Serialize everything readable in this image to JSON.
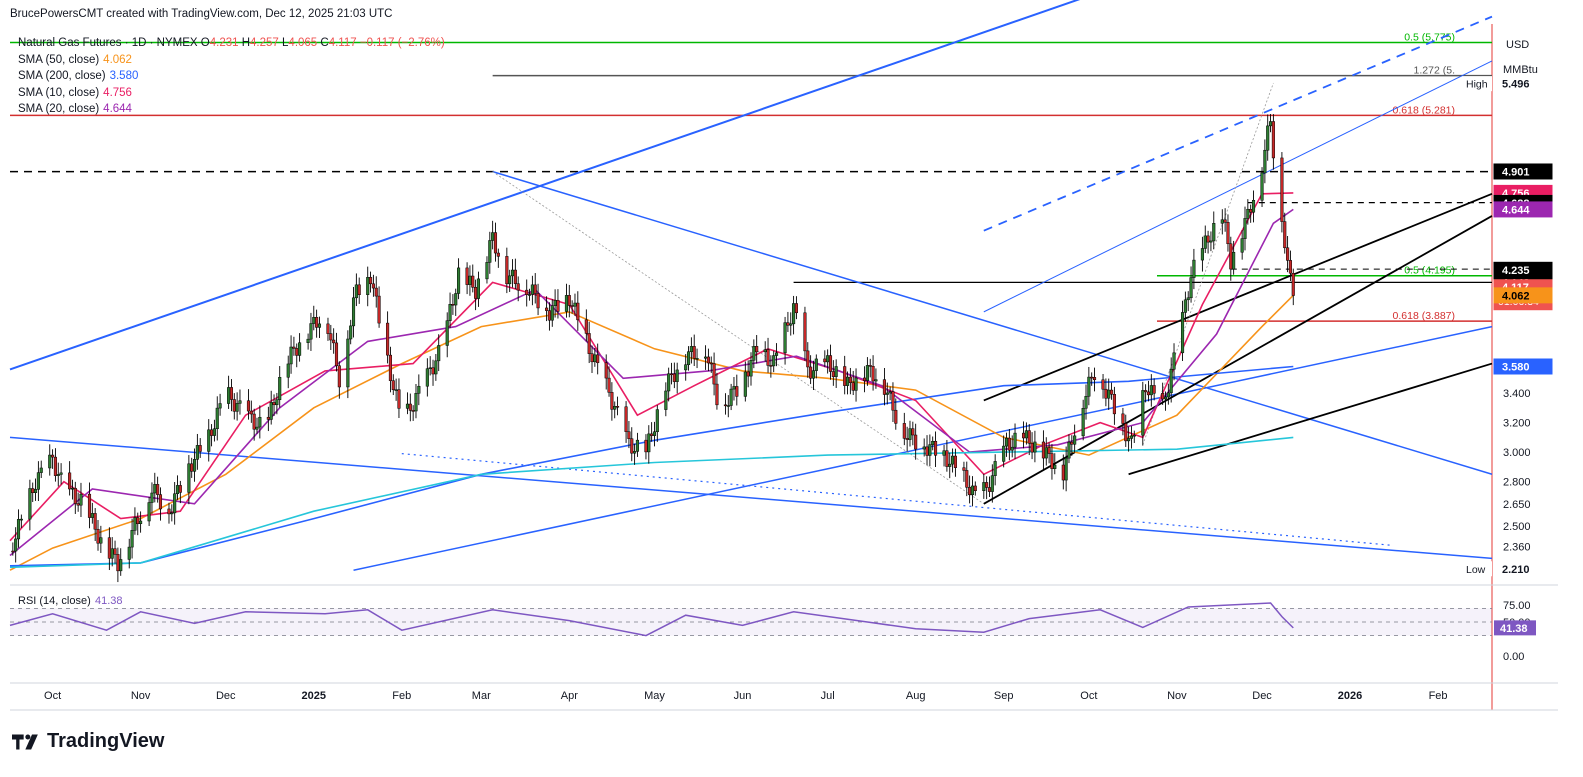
{
  "header": {
    "credit": "BrucePowersCMT created with TradingView.com, Dec 12, 2025 21:03 UTC"
  },
  "legend": {
    "symbol": "Natural Gas Futures · 1D · NYMEX",
    "ohlc": {
      "o_label": "O",
      "o": "4.231",
      "h_label": "H",
      "h": "4.257",
      "l_label": "L",
      "l": "4.065",
      "c_label": "C",
      "c": "4.117",
      "change": "−0.117 (−2.76%)"
    },
    "indicators": [
      {
        "label": "SMA (50, close)",
        "value": "4.062",
        "color": "#f7931a"
      },
      {
        "label": "SMA (200, close)",
        "value": "3.580",
        "color": "#2962ff"
      },
      {
        "label": "SMA (10, close)",
        "value": "4.756",
        "color": "#e91e63"
      },
      {
        "label": "SMA (20, close)",
        "value": "4.644",
        "color": "#9c27b0"
      }
    ]
  },
  "brand": {
    "name": "TradingView"
  },
  "chart_data": [
    {
      "type": "candlestick",
      "title": "Natural Gas Futures · 1D · NYMEX",
      "currency": "USD",
      "unit": "MMBtu",
      "x_start": "2024-09-16",
      "x_end": "2026-02-20",
      "ylim": [
        2.1,
        5.9
      ],
      "x_ticks": [
        "Oct",
        "Nov",
        "Dec",
        "2025",
        "Feb",
        "Mar",
        "Apr",
        "May",
        "Jun",
        "Jul",
        "Aug",
        "Sep",
        "Oct",
        "Nov",
        "Dec",
        "2026",
        "Feb"
      ],
      "x_tick_dates": [
        "2024-10-01",
        "2024-11-01",
        "2024-12-01",
        "2025-01-01",
        "2025-02-01",
        "2025-03-01",
        "2025-04-01",
        "2025-05-01",
        "2025-06-01",
        "2025-07-01",
        "2025-08-01",
        "2025-09-01",
        "2025-10-01",
        "2025-11-01",
        "2025-12-01",
        "2026-01-01",
        "2026-02-01"
      ],
      "y_ticks": [
        2.36,
        2.5,
        2.65,
        2.8,
        3.0,
        3.2,
        3.4
      ],
      "price_path": [
        [
          "2024-09-16",
          2.33
        ],
        [
          "2024-09-25",
          2.8
        ],
        [
          "2024-10-01",
          2.95
        ],
        [
          "2024-10-05",
          2.75
        ],
        [
          "2024-10-12",
          2.65
        ],
        [
          "2024-10-18",
          2.4
        ],
        [
          "2024-10-24",
          2.25
        ],
        [
          "2024-10-30",
          2.5
        ],
        [
          "2024-11-05",
          2.75
        ],
        [
          "2024-11-11",
          2.6
        ],
        [
          "2024-11-18",
          2.9
        ],
        [
          "2024-11-25",
          3.1
        ],
        [
          "2024-12-01",
          3.4
        ],
        [
          "2024-12-08",
          3.25
        ],
        [
          "2024-12-15",
          3.15
        ],
        [
          "2024-12-22",
          3.6
        ],
        [
          "2024-12-29",
          3.8
        ],
        [
          "2025-01-05",
          3.95
        ],
        [
          "2025-01-10",
          3.5
        ],
        [
          "2025-01-16",
          4.1
        ],
        [
          "2025-01-21",
          4.2
        ],
        [
          "2025-01-26",
          3.7
        ],
        [
          "2025-02-01",
          3.2
        ],
        [
          "2025-02-07",
          3.4
        ],
        [
          "2025-02-15",
          3.7
        ],
        [
          "2025-02-21",
          4.2
        ],
        [
          "2025-02-27",
          4.1
        ],
        [
          "2025-03-05",
          4.45
        ],
        [
          "2025-03-10",
          4.2
        ],
        [
          "2025-03-18",
          4.1
        ],
        [
          "2025-03-25",
          3.95
        ],
        [
          "2025-04-01",
          4.05
        ],
        [
          "2025-04-08",
          3.7
        ],
        [
          "2025-04-15",
          3.4
        ],
        [
          "2025-04-22",
          3.05
        ],
        [
          "2025-04-28",
          3.0
        ],
        [
          "2025-05-05",
          3.45
        ],
        [
          "2025-05-12",
          3.65
        ],
        [
          "2025-05-19",
          3.7
        ],
        [
          "2025-05-24",
          3.3
        ],
        [
          "2025-05-31",
          3.45
        ],
        [
          "2025-06-06",
          3.7
        ],
        [
          "2025-06-12",
          3.6
        ],
        [
          "2025-06-19",
          3.98
        ],
        [
          "2025-06-24",
          3.55
        ],
        [
          "2025-07-01",
          3.6
        ],
        [
          "2025-07-08",
          3.45
        ],
        [
          "2025-07-15",
          3.55
        ],
        [
          "2025-07-20",
          3.5
        ],
        [
          "2025-07-27",
          3.15
        ],
        [
          "2025-08-03",
          3.05
        ],
        [
          "2025-08-10",
          3.0
        ],
        [
          "2025-08-17",
          2.85
        ],
        [
          "2025-08-22",
          2.7
        ],
        [
          "2025-08-26",
          2.75
        ],
        [
          "2025-09-02",
          3.05
        ],
        [
          "2025-09-08",
          3.1
        ],
        [
          "2025-09-15",
          3.0
        ],
        [
          "2025-09-22",
          2.87
        ],
        [
          "2025-09-28",
          3.3
        ],
        [
          "2025-10-03",
          3.55
        ],
        [
          "2025-10-09",
          3.35
        ],
        [
          "2025-10-16",
          3.05
        ],
        [
          "2025-10-21",
          3.45
        ],
        [
          "2025-10-27",
          3.3
        ],
        [
          "2025-11-01",
          3.7
        ],
        [
          "2025-11-06",
          4.2
        ],
        [
          "2025-11-12",
          4.45
        ],
        [
          "2025-11-17",
          4.6
        ],
        [
          "2025-11-20",
          4.3
        ],
        [
          "2025-11-26",
          4.6
        ],
        [
          "2025-12-01",
          4.95
        ],
        [
          "2025-12-04",
          5.25
        ],
        [
          "2025-12-06",
          4.85
        ],
        [
          "2025-12-08",
          4.6
        ],
        [
          "2025-12-10",
          4.25
        ],
        [
          "2025-12-12",
          4.117
        ]
      ],
      "series": [
        {
          "name": "SMA (50, close)",
          "color": "#f7931a",
          "last": "4.062",
          "values": [
            [
              "2024-09-16",
              2.2
            ],
            [
              "2024-10-01",
              2.35
            ],
            [
              "2024-11-01",
              2.55
            ],
            [
              "2024-12-01",
              2.85
            ],
            [
              "2025-01-01",
              3.3
            ],
            [
              "2025-02-01",
              3.6
            ],
            [
              "2025-03-01",
              3.85
            ],
            [
              "2025-04-01",
              3.95
            ],
            [
              "2025-05-01",
              3.7
            ],
            [
              "2025-06-01",
              3.55
            ],
            [
              "2025-07-01",
              3.5
            ],
            [
              "2025-08-01",
              3.42
            ],
            [
              "2025-09-01",
              3.1
            ],
            [
              "2025-10-01",
              2.98
            ],
            [
              "2025-11-01",
              3.25
            ],
            [
              "2025-12-01",
              3.85
            ],
            [
              "2025-12-12",
              4.062
            ]
          ]
        },
        {
          "name": "SMA (200, close)",
          "color": "#2962ff",
          "last": "3.580",
          "values": [
            [
              "2024-09-16",
              2.23
            ],
            [
              "2024-11-01",
              2.25
            ],
            [
              "2025-01-01",
              2.55
            ],
            [
              "2025-03-01",
              2.85
            ],
            [
              "2025-05-01",
              3.08
            ],
            [
              "2025-07-01",
              3.27
            ],
            [
              "2025-09-01",
              3.45
            ],
            [
              "2025-10-15",
              3.48
            ],
            [
              "2025-12-12",
              3.58
            ]
          ]
        },
        {
          "name": "SMA (10, close)",
          "color": "#e91e63",
          "last": "4.756",
          "values": [
            [
              "2024-09-16",
              2.4
            ],
            [
              "2024-10-05",
              2.8
            ],
            [
              "2024-10-25",
              2.55
            ],
            [
              "2024-11-15",
              2.6
            ],
            [
              "2024-12-08",
              3.25
            ],
            [
              "2025-01-05",
              3.55
            ],
            [
              "2025-02-05",
              3.6
            ],
            [
              "2025-03-05",
              4.15
            ],
            [
              "2025-04-01",
              4.0
            ],
            [
              "2025-04-25",
              3.25
            ],
            [
              "2025-05-15",
              3.45
            ],
            [
              "2025-06-10",
              3.7
            ],
            [
              "2025-07-05",
              3.55
            ],
            [
              "2025-08-01",
              3.35
            ],
            [
              "2025-08-25",
              2.85
            ],
            [
              "2025-09-15",
              3.05
            ],
            [
              "2025-10-05",
              3.2
            ],
            [
              "2025-10-20",
              3.1
            ],
            [
              "2025-11-10",
              4.0
            ],
            [
              "2025-12-01",
              4.75
            ],
            [
              "2025-12-12",
              4.756
            ]
          ]
        },
        {
          "name": "SMA (20, close)",
          "color": "#9c27b0",
          "last": "4.644",
          "values": [
            [
              "2024-09-16",
              2.3
            ],
            [
              "2024-10-15",
              2.75
            ],
            [
              "2024-11-20",
              2.65
            ],
            [
              "2024-12-20",
              3.3
            ],
            [
              "2025-01-20",
              3.75
            ],
            [
              "2025-02-20",
              3.85
            ],
            [
              "2025-03-20",
              4.1
            ],
            [
              "2025-04-20",
              3.5
            ],
            [
              "2025-05-20",
              3.55
            ],
            [
              "2025-06-20",
              3.65
            ],
            [
              "2025-07-20",
              3.45
            ],
            [
              "2025-08-20",
              3.0
            ],
            [
              "2025-09-20",
              3.05
            ],
            [
              "2025-10-20",
              3.2
            ],
            [
              "2025-11-15",
              3.8
            ],
            [
              "2025-12-05",
              4.55
            ],
            [
              "2025-12-12",
              4.644
            ]
          ]
        },
        {
          "name": "SMA (200, close)",
          "color": "#26c6da",
          "values": [
            [
              "2024-09-16",
              2.22
            ],
            [
              "2024-11-01",
              2.25
            ],
            [
              "2025-01-01",
              2.6
            ],
            [
              "2025-03-01",
              2.85
            ],
            [
              "2025-05-01",
              2.93
            ],
            [
              "2025-07-01",
              2.98
            ],
            [
              "2025-09-01",
              3.0
            ],
            [
              "2025-11-01",
              3.02
            ],
            [
              "2025-12-12",
              3.1
            ]
          ]
        }
      ],
      "levels": [
        {
          "label": "0.5 (5.775)",
          "value": 5.775,
          "color": "#00b700"
        },
        {
          "label": "1.272 (5.",
          "value": 5.55,
          "color": "#555555"
        },
        {
          "label": "0.618 (5.281)",
          "value": 5.281,
          "color": "#d32f2f"
        },
        {
          "label": "0.5 (4.195)",
          "value": 4.195,
          "color": "#00b700"
        },
        {
          "label": "0.618 (3.887)",
          "value": 3.887,
          "color": "#d32f2f"
        }
      ],
      "price_labels": [
        {
          "text": "5.496",
          "value": 5.496,
          "tag": "High",
          "bg": "#ffffff",
          "fg": "#131722"
        },
        {
          "text": "4.901",
          "value": 4.901,
          "bg": "#000000",
          "fg": "#ffffff"
        },
        {
          "text": "4.756",
          "value": 4.756,
          "bg": "#e91e63",
          "fg": "#ffffff"
        },
        {
          "text": "4.688",
          "value": 4.688,
          "bg": "#000000",
          "fg": "#ffffff"
        },
        {
          "text": "4.644",
          "value": 4.644,
          "bg": "#9c27b0",
          "fg": "#ffffff"
        },
        {
          "text": "4.235",
          "value": 4.235,
          "bg": "#000000",
          "fg": "#ffffff"
        },
        {
          "text": "4.148",
          "value": 4.148,
          "bg": "#000000",
          "fg": "#ffffff"
        },
        {
          "text": "4.117",
          "value": 4.117,
          "bg": "#ef5350",
          "fg": "#ffffff",
          "sub": "01:06:34"
        },
        {
          "text": "4.062",
          "value": 4.062,
          "bg": "#f7931a",
          "fg": "#000000"
        },
        {
          "text": "3.580",
          "value": 3.58,
          "bg": "#2962ff",
          "fg": "#ffffff"
        },
        {
          "text": "2.210",
          "value": 2.21,
          "tag": "Low",
          "bg": "#ffffff",
          "fg": "#131722"
        }
      ]
    },
    {
      "type": "line",
      "title": "RSI (14, close)",
      "last": "41.38",
      "ylim": [
        0,
        100
      ],
      "y_ticks": [
        0,
        50,
        75
      ],
      "bands": [
        30,
        50,
        70
      ],
      "values": [
        [
          "2024-09-16",
          45
        ],
        [
          "2024-10-01",
          62
        ],
        [
          "2024-10-20",
          38
        ],
        [
          "2024-11-01",
          65
        ],
        [
          "2024-11-20",
          48
        ],
        [
          "2024-12-08",
          65
        ],
        [
          "2025-01-05",
          62
        ],
        [
          "2025-01-20",
          68
        ],
        [
          "2025-02-01",
          38
        ],
        [
          "2025-03-05",
          68
        ],
        [
          "2025-04-01",
          52
        ],
        [
          "2025-04-28",
          30
        ],
        [
          "2025-05-12",
          60
        ],
        [
          "2025-06-01",
          45
        ],
        [
          "2025-06-19",
          65
        ],
        [
          "2025-07-15",
          50
        ],
        [
          "2025-08-01",
          40
        ],
        [
          "2025-08-25",
          35
        ],
        [
          "2025-09-10",
          55
        ],
        [
          "2025-10-05",
          68
        ],
        [
          "2025-10-20",
          42
        ],
        [
          "2025-11-05",
          72
        ],
        [
          "2025-12-04",
          78
        ],
        [
          "2025-12-08",
          58
        ],
        [
          "2025-12-12",
          41.38
        ]
      ]
    }
  ]
}
